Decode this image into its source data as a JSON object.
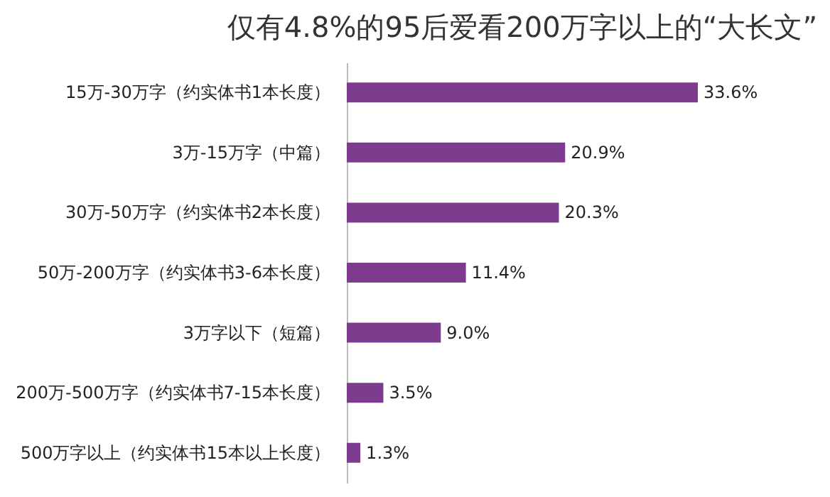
{
  "chart_data": {
    "type": "bar",
    "orientation": "horizontal",
    "title": "仅有4.8%的95后爱看200万字以上的“大长文”",
    "categories": [
      "15万-30万字（约实体书1本长度）",
      "3万-15万字（中篇）",
      "30万-50万字（约实体书2本长度）",
      "50万-200万字（约实体书3-6本长度）",
      "3万字以下（短篇）",
      "200万-500万字（约实体书7-15本长度）",
      "500万字以上（约实体书15本以上长度）"
    ],
    "values": [
      33.6,
      20.9,
      20.3,
      11.4,
      9.0,
      3.5,
      1.3
    ],
    "value_labels": [
      "33.6%",
      "20.9%",
      "20.3%",
      "11.4%",
      "9.0%",
      "3.5%",
      "1.3%"
    ],
    "color": "#7d3b8d",
    "grid": false
  }
}
